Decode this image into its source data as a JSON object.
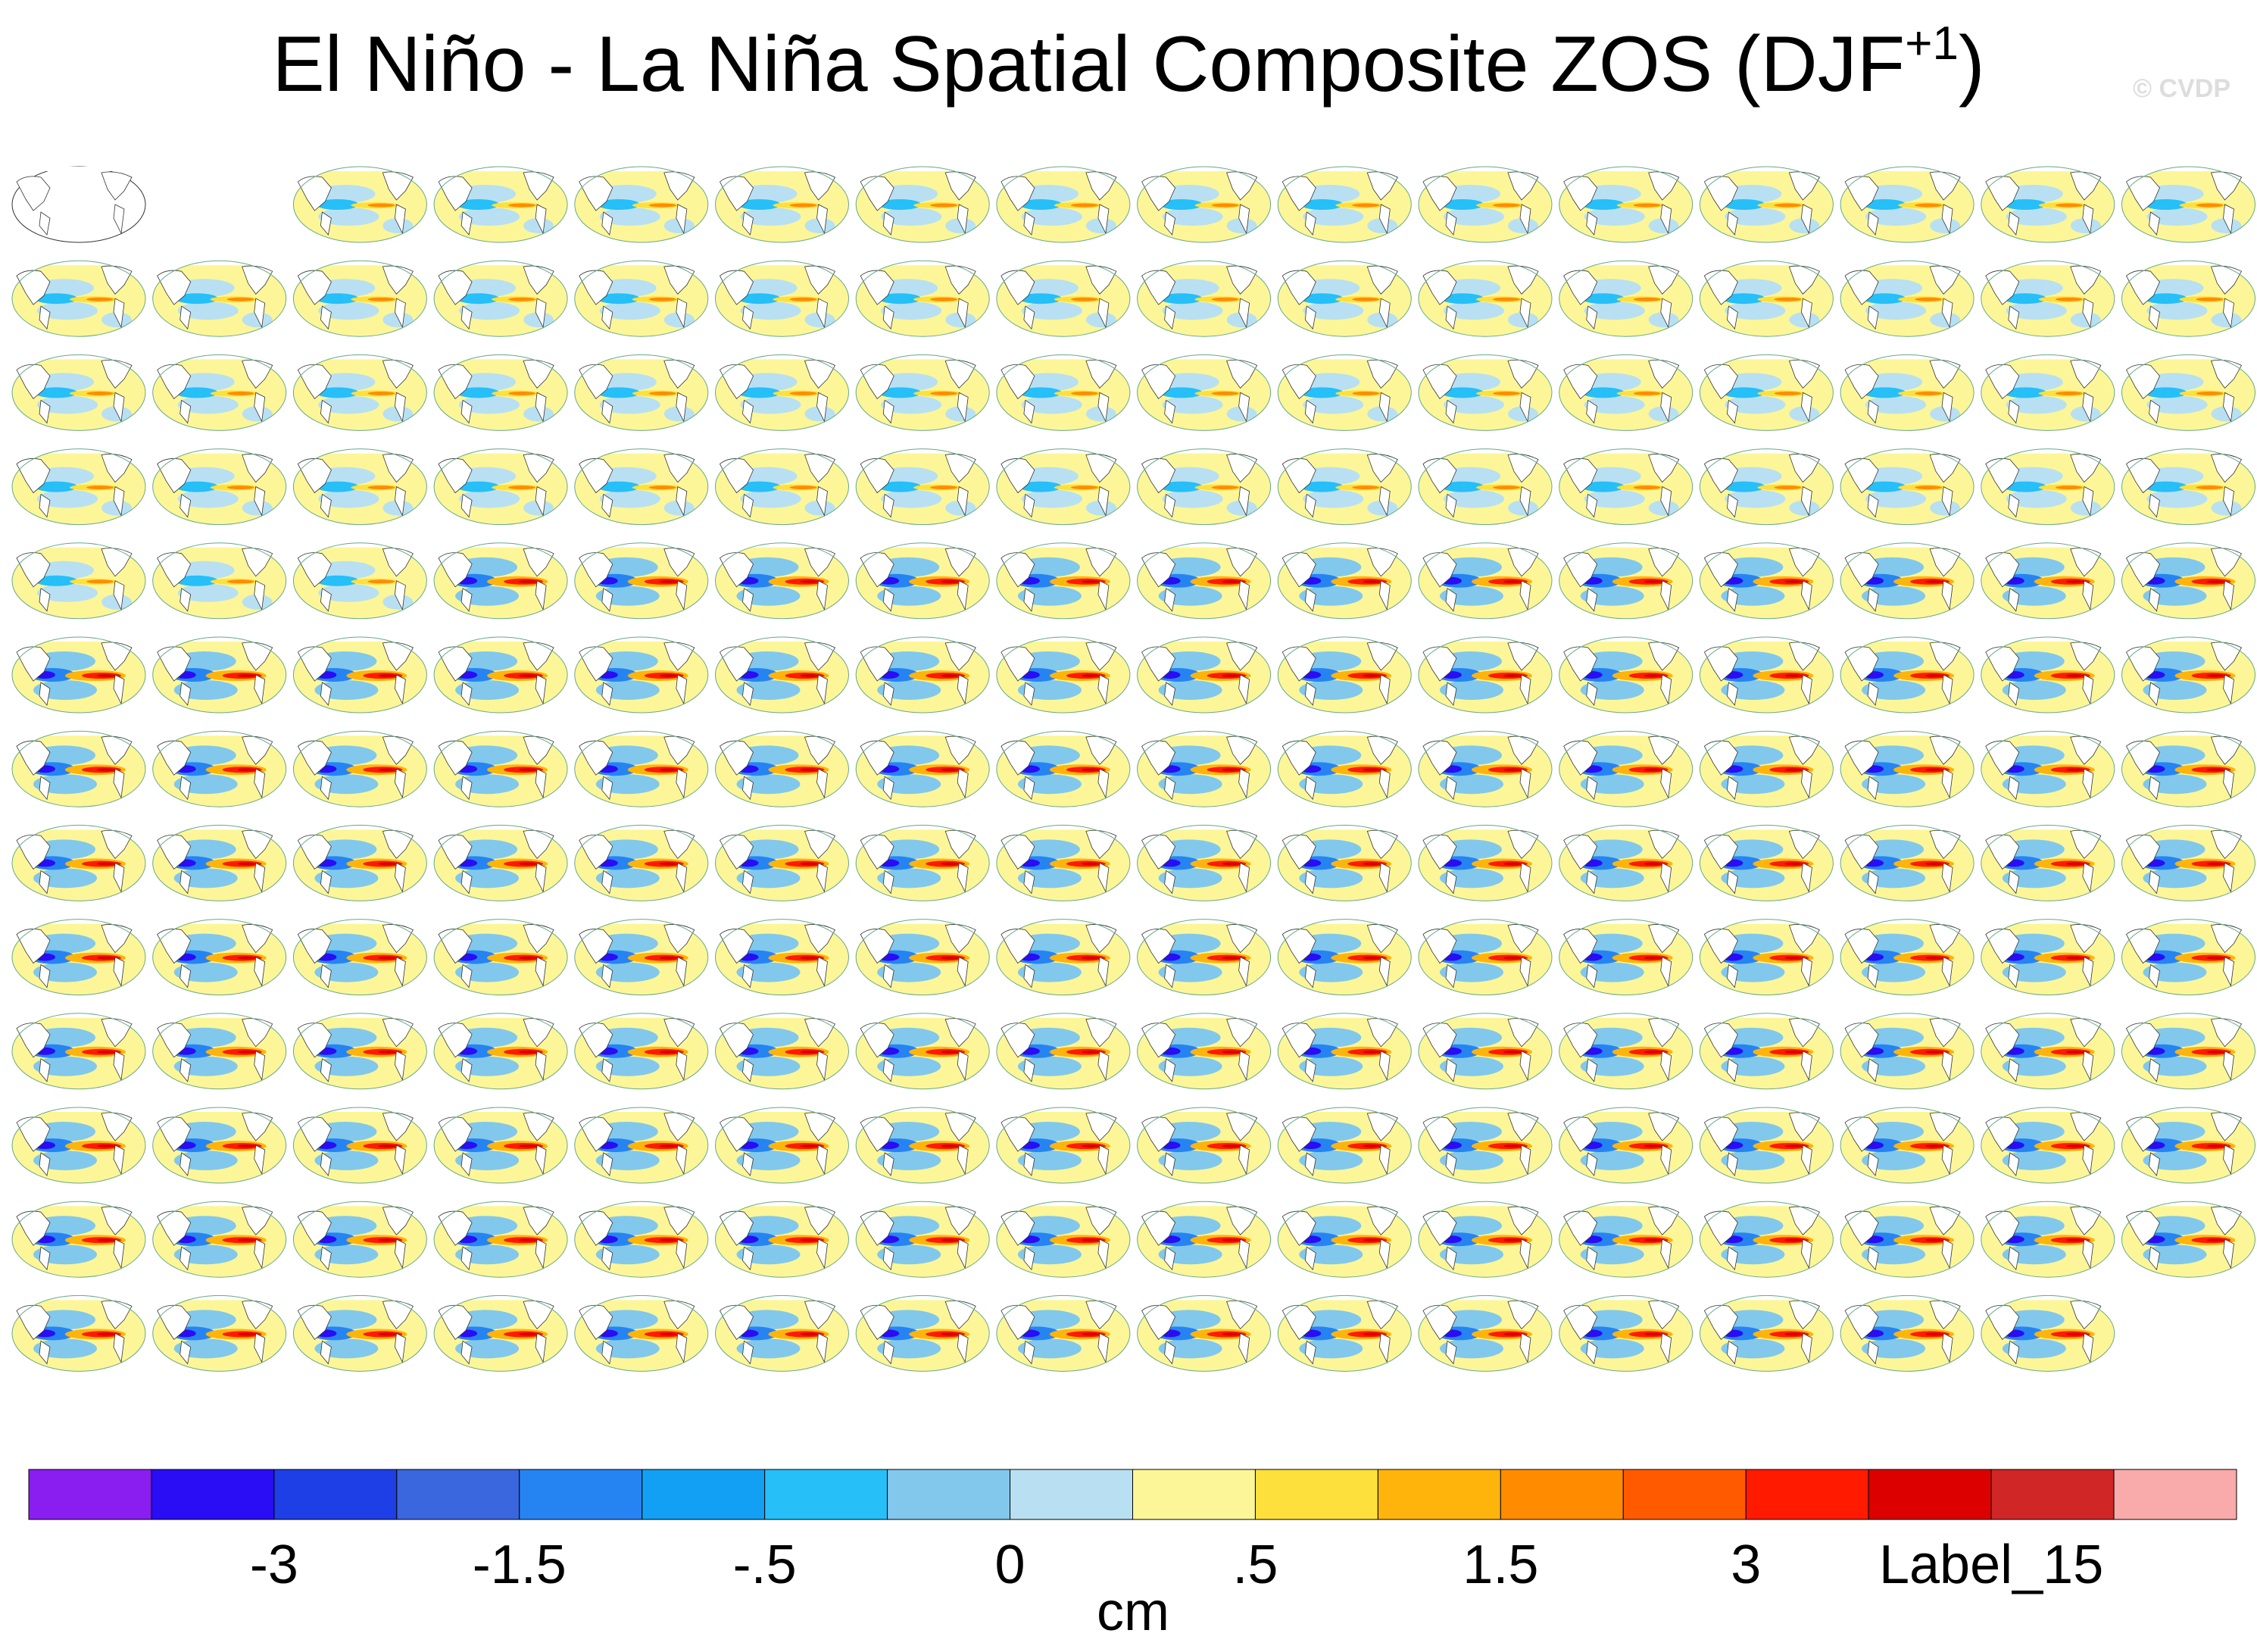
{
  "header": {
    "title": "El Niño - La Niña Spatial Composite ZOS (DJF",
    "title_sup": "+1",
    "title_end": ")",
    "credit": "© CVDP"
  },
  "colorbar": {
    "colors": [
      "#8a1ef0",
      "#2a0cf5",
      "#1e3ee6",
      "#3a66de",
      "#2684f2",
      "#12a0f5",
      "#26bff8",
      "#82c8ec",
      "#b8e0f2",
      "#fcf698",
      "#fee03c",
      "#ffb40c",
      "#ff8c00",
      "#ff5a00",
      "#ff1a00",
      "#dc0000",
      "#d02626",
      "#f9aaaa"
    ],
    "labels": [
      "-3",
      "-1.5",
      "-.5",
      "0",
      ".5",
      "1.5",
      "3",
      "Label_15"
    ],
    "units": "cm"
  }
}
